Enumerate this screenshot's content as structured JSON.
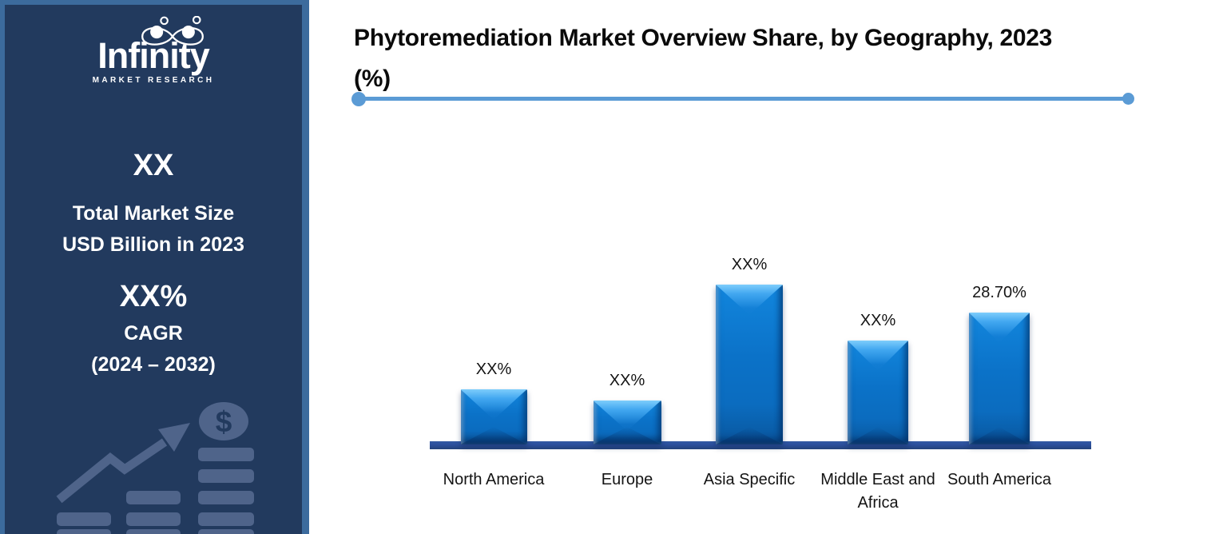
{
  "brand": {
    "name": "Infinity",
    "tagline": "MARKET RESEARCH"
  },
  "sidebar": {
    "market_size": {
      "value": "XX",
      "label_line1": "Total Market Size",
      "label_line2": "USD Billion in 2023"
    },
    "cagr": {
      "value": "XX%",
      "label": "CAGR",
      "period": "(2024 – 2032)"
    },
    "graphic": {
      "coin_symbol": "$"
    }
  },
  "header": {
    "title_line1": "Phytoremediation Market Overview Share, by Geography, 2023",
    "title_line2": "(%)"
  },
  "chart_data": {
    "type": "bar",
    "title": "Phytoremediation Market Overview Share, by Geography, 2023 (%)",
    "categories": [
      "North America",
      "Europe",
      "Asia Specific",
      "Middle East and Africa",
      "South America"
    ],
    "data_labels": [
      "XX%",
      "XX%",
      "XX%",
      "XX%",
      "28.70%"
    ],
    "values": [
      12.0,
      9.6,
      34.8,
      22.6,
      28.7
    ],
    "values_note": "Only the South America share (28.70%) is printed on the chart; the other bars carry XX% placeholder labels — their numeric values are estimated from bar heights",
    "xlabel": "",
    "ylabel": "",
    "y_axis_visible": false,
    "gridlines": false,
    "legend": "none"
  },
  "colors": {
    "sidebar-bg": "#223a5e",
    "sidebar-border": "#3c6b9d",
    "deco": "#4f648a",
    "bar": "#0b72c8",
    "bar-light": "#7ecdfc",
    "baseline": "#2b4f9c",
    "divider": "#5b9bd5",
    "title-text": "#0a0a0a",
    "label-text": "#141414"
  }
}
